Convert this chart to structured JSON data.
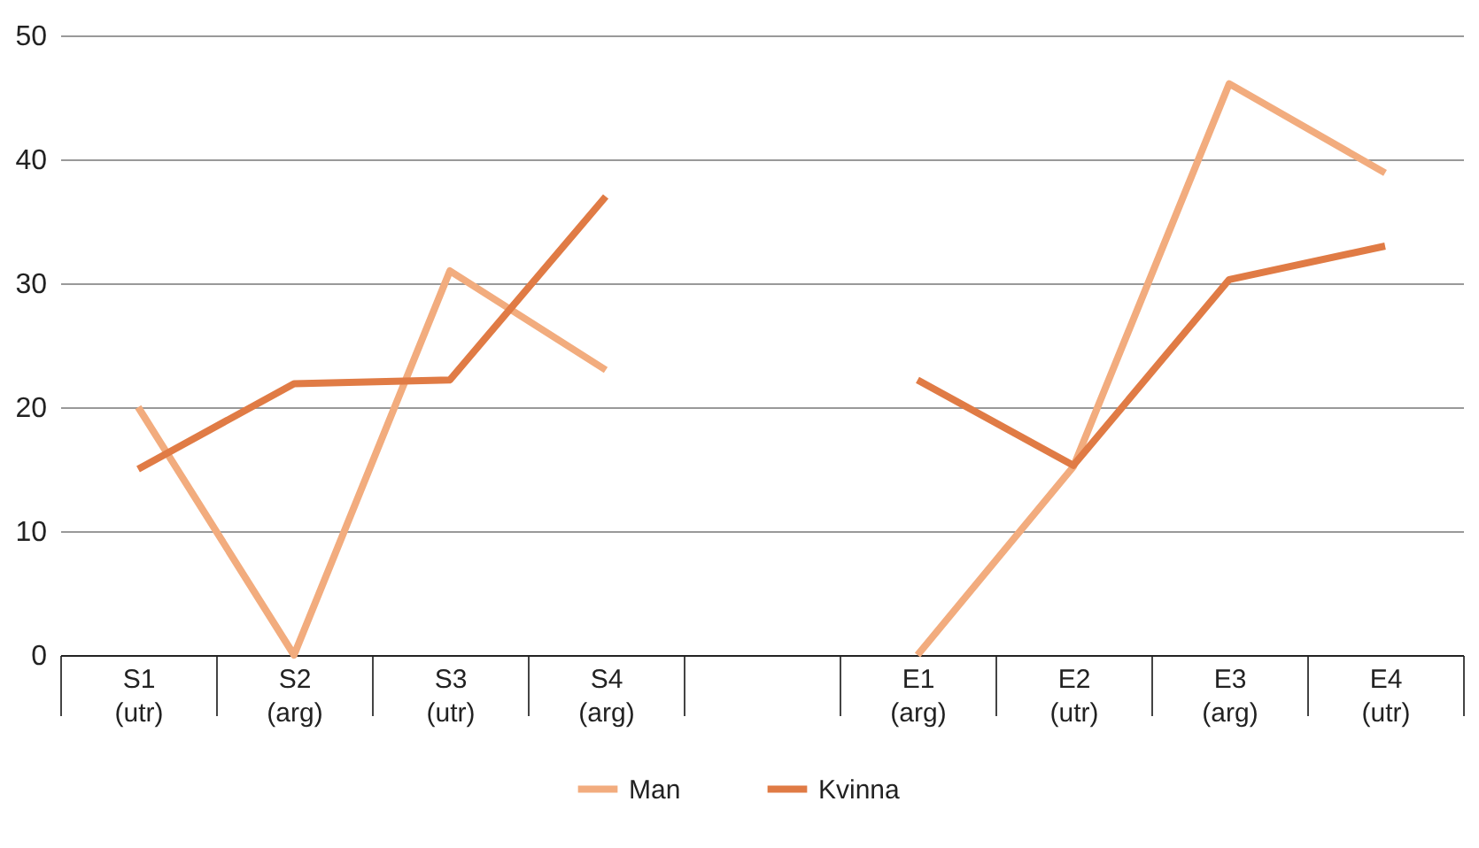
{
  "chart_data": {
    "type": "line",
    "categories": [
      "S1\n(utr)",
      "S2\n(arg)",
      "S3\n(utr)",
      "S4\n(arg)",
      null,
      "E1\n(arg)",
      "E2\n(utr)",
      "E3\n(arg)",
      "E4\n(utr)"
    ],
    "series": [
      {
        "name": "Man",
        "color": "#f2ac7e",
        "values": [
          20,
          0,
          31,
          23,
          null,
          0,
          15.2,
          46.1,
          38.9
        ]
      },
      {
        "name": "Kvinna",
        "color": "#e07b45",
        "values": [
          15,
          21.9,
          22.2,
          37,
          null,
          22.2,
          15.3,
          30.3,
          33
        ]
      }
    ],
    "ylim": [
      0,
      50
    ],
    "yticks": [
      0,
      10,
      20,
      30,
      40,
      50
    ],
    "grid": "y",
    "legend": "bottom",
    "marker": "none",
    "line_style": "solid"
  }
}
